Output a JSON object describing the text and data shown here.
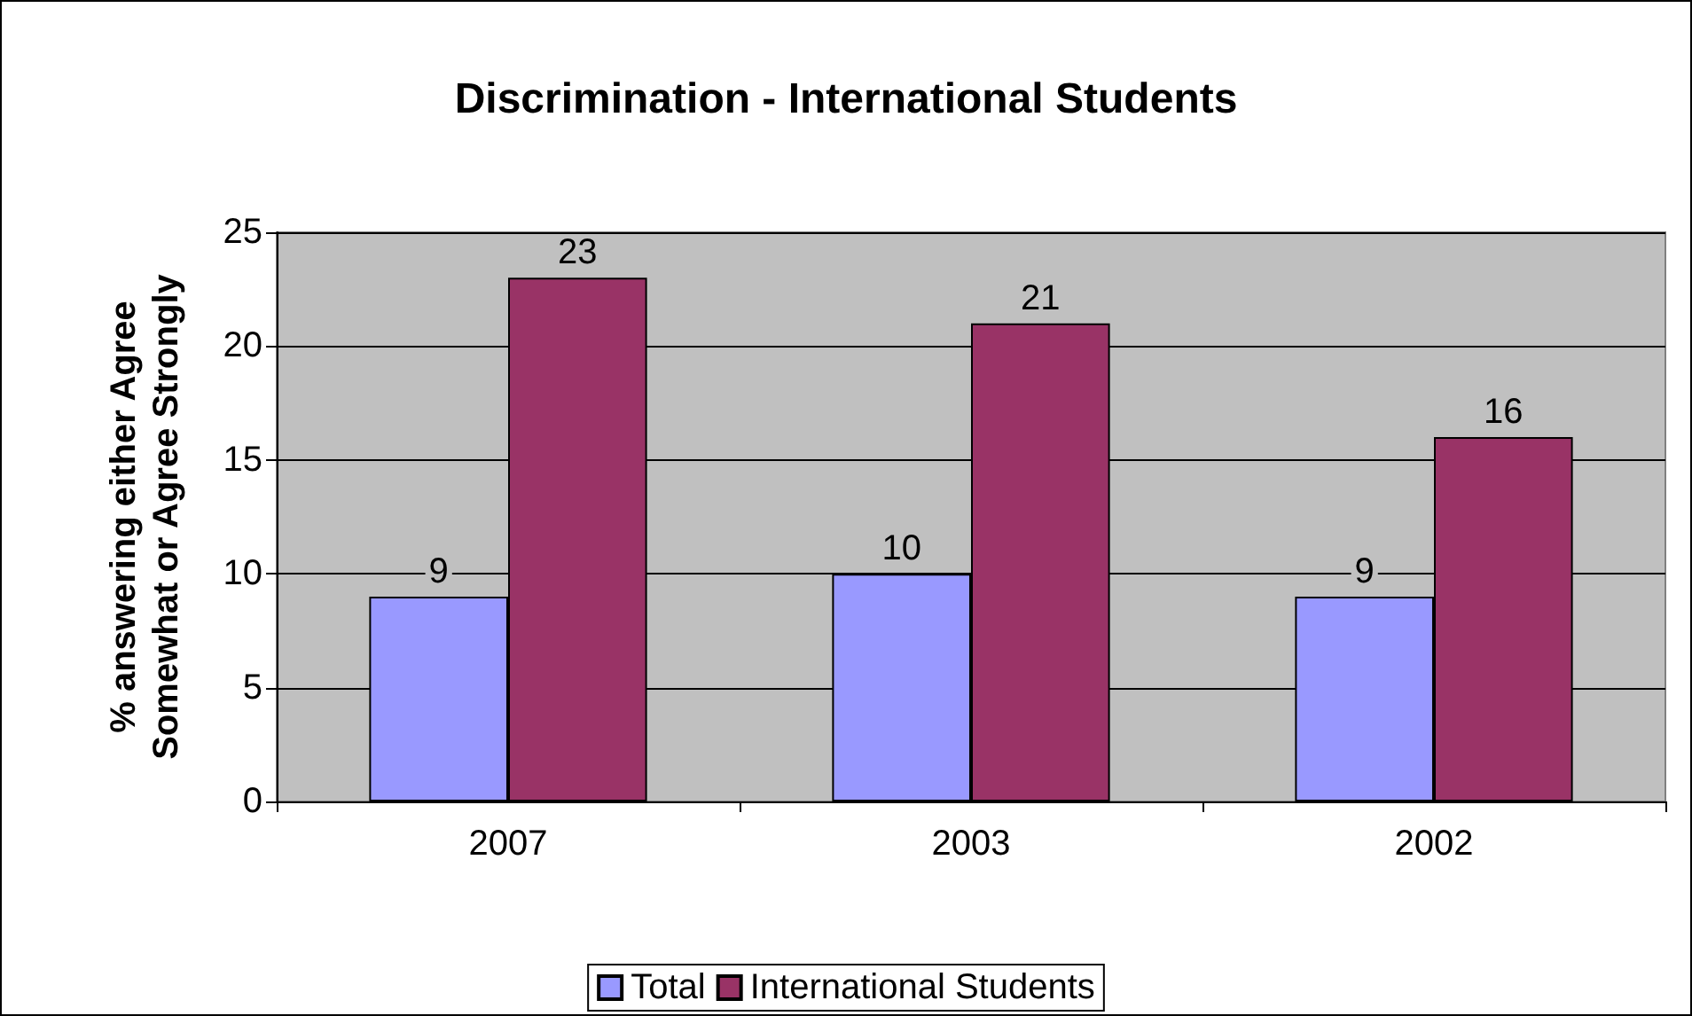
{
  "chart_data": {
    "type": "bar",
    "title": "Discrimination - International Students",
    "ylabel": "% answering either Agree\nSomewhat or Agree Strongly",
    "categories": [
      "2007",
      "2003",
      "2002"
    ],
    "series": [
      {
        "name": "Total",
        "color": "#9999ff",
        "values": [
          9,
          10,
          9
        ]
      },
      {
        "name": "International Students",
        "color": "#993366",
        "values": [
          23,
          21,
          16
        ]
      }
    ],
    "ylim": [
      0,
      25
    ],
    "yticks": [
      0,
      5,
      10,
      15,
      20,
      25
    ],
    "grid": "y",
    "legend": "bottom",
    "data_labels": true
  }
}
